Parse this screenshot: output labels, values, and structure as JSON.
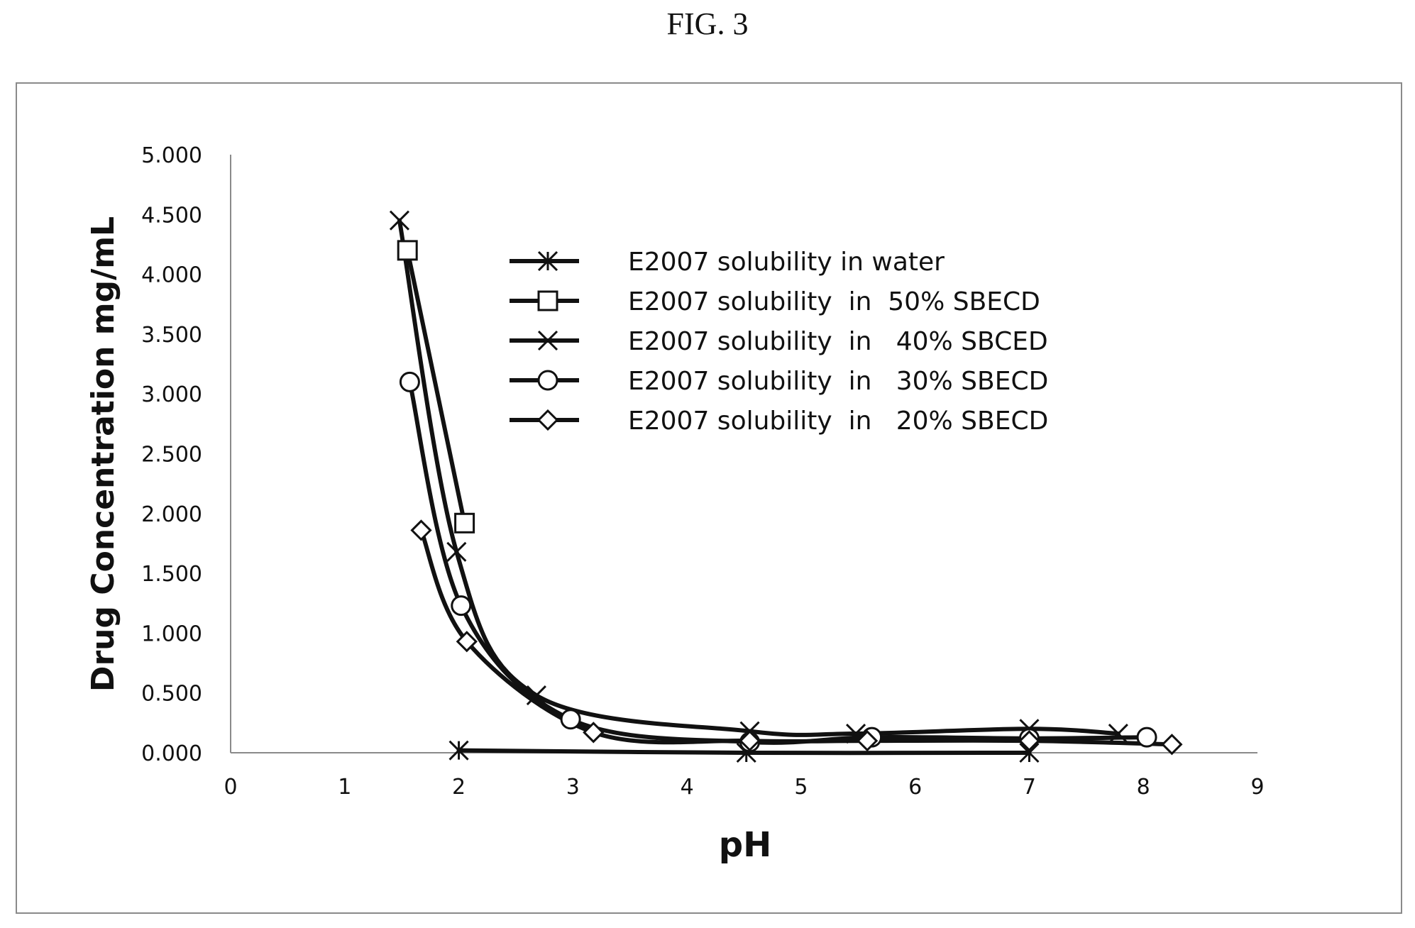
{
  "figure": {
    "label": "FIG. 3"
  },
  "chart_data": {
    "type": "scatter",
    "mode": "lines+markers",
    "xlabel": "pH",
    "ylabel": "Drug Concentration mg/mL",
    "xlim": [
      0,
      9
    ],
    "ylim": [
      0,
      5
    ],
    "x_ticks": [
      0,
      1,
      2,
      3,
      4,
      5,
      6,
      7,
      8,
      9
    ],
    "x_tick_labels": [
      "0",
      "1",
      "2",
      "3",
      "4",
      "5",
      "6",
      "7",
      "8",
      "9"
    ],
    "y_ticks": [
      0,
      0.5,
      1,
      1.5,
      2,
      2.5,
      3,
      3.5,
      4,
      4.5,
      5
    ],
    "y_tick_labels": [
      "0.000",
      "0.500",
      "1.000",
      "1.500",
      "2.000",
      "2.500",
      "3.000",
      "3.500",
      "4.000",
      "4.500",
      "5.000"
    ],
    "grid": false,
    "legend_position": "inside-top-center",
    "series": [
      {
        "name": "E2007 solubility in water",
        "marker": "asterisk",
        "color": "#111111",
        "points": [
          [
            2.0,
            0.02
          ],
          [
            4.52,
            0.0
          ],
          [
            7.0,
            0.0
          ]
        ]
      },
      {
        "name": "E2007 solubility  in  50% SBECD",
        "marker": "square",
        "color": "#111111",
        "points": [
          [
            1.55,
            4.2
          ],
          [
            2.05,
            1.92
          ]
        ]
      },
      {
        "name": "E2007 solubility  in   40% SBCED",
        "marker": "x",
        "color": "#111111",
        "points": [
          [
            1.48,
            4.45
          ],
          [
            1.98,
            1.68
          ],
          [
            2.68,
            0.48
          ],
          [
            4.55,
            0.18
          ],
          [
            5.48,
            0.16
          ],
          [
            7.0,
            0.2
          ],
          [
            7.78,
            0.16
          ]
        ]
      },
      {
        "name": "E2007 solubility  in   30% SBECD",
        "marker": "circle",
        "color": "#111111",
        "points": [
          [
            1.57,
            3.1
          ],
          [
            2.02,
            1.23
          ],
          [
            2.98,
            0.28
          ],
          [
            4.55,
            0.09
          ],
          [
            5.62,
            0.13
          ],
          [
            7.0,
            0.12
          ],
          [
            8.03,
            0.13
          ]
        ]
      },
      {
        "name": "E2007 solubility  in   20% SBECD",
        "marker": "diamond",
        "color": "#111111",
        "points": [
          [
            1.67,
            1.86
          ],
          [
            2.07,
            0.93
          ],
          [
            3.18,
            0.17
          ],
          [
            4.55,
            0.1
          ],
          [
            5.58,
            0.1
          ],
          [
            7.0,
            0.1
          ],
          [
            8.25,
            0.07
          ]
        ]
      }
    ]
  }
}
